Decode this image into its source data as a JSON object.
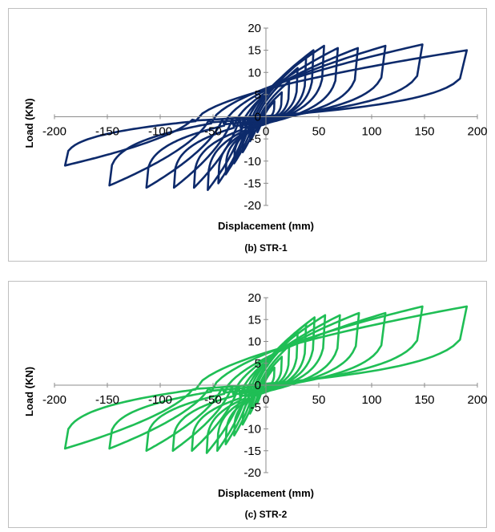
{
  "chart_data": [
    {
      "type": "line",
      "caption": "(b) STR-1",
      "xlabel": "Displacement (mm)",
      "ylabel": "Load (KN)",
      "xlim": [
        -200,
        200
      ],
      "ylim": [
        -20,
        20
      ],
      "xticks": [
        -200,
        -150,
        -100,
        -50,
        0,
        50,
        100,
        150,
        200
      ],
      "yticks": [
        -20,
        -15,
        -10,
        -5,
        0,
        5,
        10,
        15,
        20
      ],
      "grid": false,
      "color": "#0d2a6b",
      "series": [
        {
          "loops": [
            {
              "amp": 8,
              "peak": 3.5,
              "neg": -3.5,
              "rev": 1.0
            },
            {
              "amp": 15,
              "peak": 5.5,
              "neg": -5.5,
              "rev": 1.5
            },
            {
              "amp": 22,
              "peak": 8.0,
              "neg": -8.0,
              "rev": 2.0
            },
            {
              "amp": 30,
              "peak": 11.0,
              "neg": -10.5,
              "rev": 2.5
            },
            {
              "amp": 38,
              "peak": 13.5,
              "neg": -13.0,
              "rev": 3.0
            },
            {
              "amp": 45,
              "peak": 15.0,
              "neg": -15.0,
              "rev": 3.0
            },
            {
              "amp": 55,
              "peak": 16.0,
              "neg": -16.5,
              "rev": 3.0
            },
            {
              "amp": 68,
              "peak": 15.5,
              "neg": -16.0,
              "rev": 3.0
            },
            {
              "amp": 87,
              "peak": 15.5,
              "neg": -16.0,
              "rev": 2.5
            },
            {
              "amp": 113,
              "peak": 16.0,
              "neg": -16.0,
              "rev": 2.0
            },
            {
              "amp": 148,
              "peak": 16.3,
              "neg": -15.5,
              "rev": 1.5
            },
            {
              "amp": 190,
              "peak": 15.0,
              "neg": -11.0,
              "rev": 1.0
            }
          ]
        }
      ]
    },
    {
      "type": "line",
      "caption": "(c) STR-2",
      "xlabel": "Displacement (mm)",
      "ylabel": "Load (KN)",
      "xlim": [
        -200,
        200
      ],
      "ylim": [
        -20,
        20
      ],
      "xticks": [
        -200,
        -150,
        -100,
        -50,
        0,
        50,
        100,
        150,
        200
      ],
      "yticks": [
        -20,
        -15,
        -10,
        -5,
        0,
        5,
        10,
        15,
        20
      ],
      "grid": false,
      "color": "#1fbe55",
      "series": [
        {
          "loops": [
            {
              "amp": 8,
              "peak": 4.0,
              "neg": -4.0,
              "rev": 1.0
            },
            {
              "amp": 15,
              "peak": 6.5,
              "neg": -6.5,
              "rev": 1.5
            },
            {
              "amp": 22,
              "peak": 9.0,
              "neg": -9.0,
              "rev": 2.0
            },
            {
              "amp": 30,
              "peak": 12.0,
              "neg": -11.5,
              "rev": 2.5
            },
            {
              "amp": 38,
              "peak": 14.0,
              "neg": -13.5,
              "rev": 3.0
            },
            {
              "amp": 46,
              "peak": 15.5,
              "neg": -15.0,
              "rev": 3.0
            },
            {
              "amp": 56,
              "peak": 16.0,
              "neg": -15.5,
              "rev": 3.0
            },
            {
              "amp": 70,
              "peak": 16.0,
              "neg": -15.0,
              "rev": 3.0
            },
            {
              "amp": 88,
              "peak": 16.5,
              "neg": -15.0,
              "rev": 2.5
            },
            {
              "amp": 113,
              "peak": 16.5,
              "neg": -15.0,
              "rev": 2.0
            },
            {
              "amp": 148,
              "peak": 18.0,
              "neg": -14.5,
              "rev": 1.5
            },
            {
              "amp": 190,
              "peak": 18.0,
              "neg": -14.5,
              "rev": 1.0
            }
          ]
        }
      ]
    }
  ]
}
